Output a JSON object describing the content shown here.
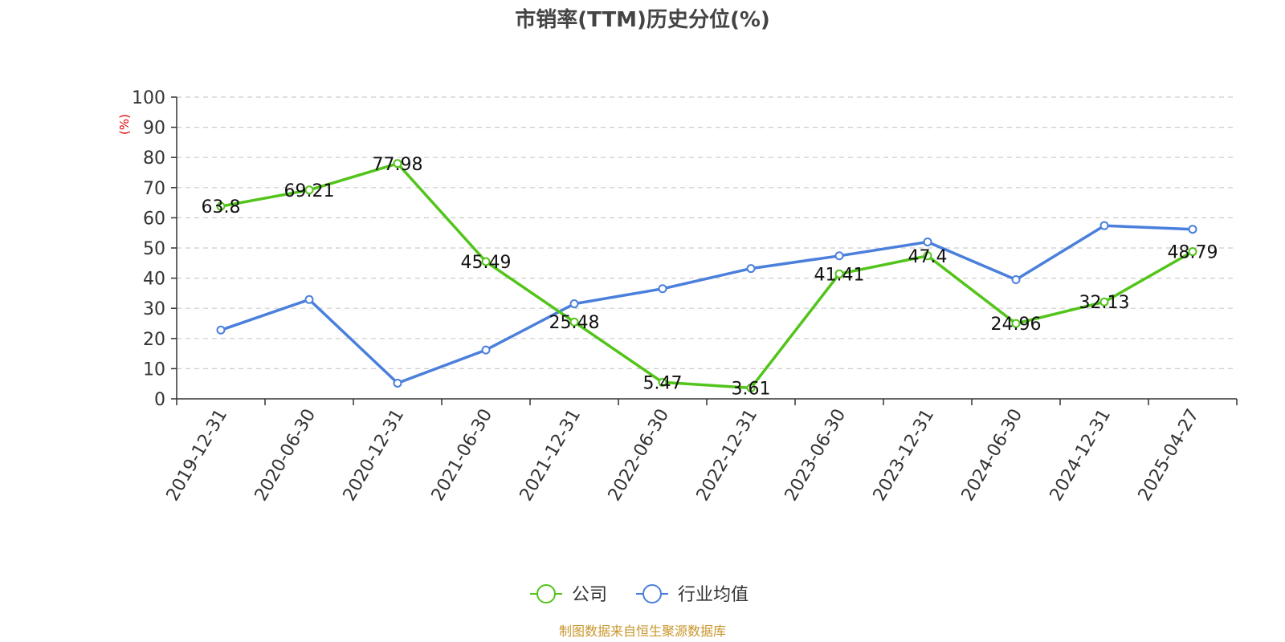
{
  "chart_data": {
    "type": "line",
    "title": "市销率(TTM)历史分位(%)",
    "ylabel": "(%)",
    "ylim": [
      0,
      100
    ],
    "yticks": [
      0,
      10,
      20,
      30,
      40,
      50,
      60,
      70,
      80,
      90,
      100
    ],
    "grid": true,
    "legend_position": "bottom",
    "categories": [
      "2019-12-31",
      "2020-06-30",
      "2020-12-31",
      "2021-06-30",
      "2021-12-31",
      "2022-06-30",
      "2022-12-31",
      "2023-06-30",
      "2023-12-31",
      "2024-06-30",
      "2024-12-31",
      "2025-04-27"
    ],
    "series": [
      {
        "name": "公司",
        "color": "#52c41a",
        "show_labels": true,
        "values": [
          63.8,
          69.21,
          77.98,
          45.49,
          25.48,
          5.47,
          3.61,
          41.41,
          47.4,
          24.96,
          32.13,
          48.79
        ]
      },
      {
        "name": "行业均值",
        "color": "#4a7fdc",
        "show_labels": false,
        "values": [
          22.8,
          32.9,
          5.2,
          16.2,
          31.5,
          36.5,
          43.2,
          47.4,
          52.0,
          39.5,
          57.4,
          56.2
        ]
      }
    ],
    "source": "制图数据来自恒生聚源数据库"
  }
}
